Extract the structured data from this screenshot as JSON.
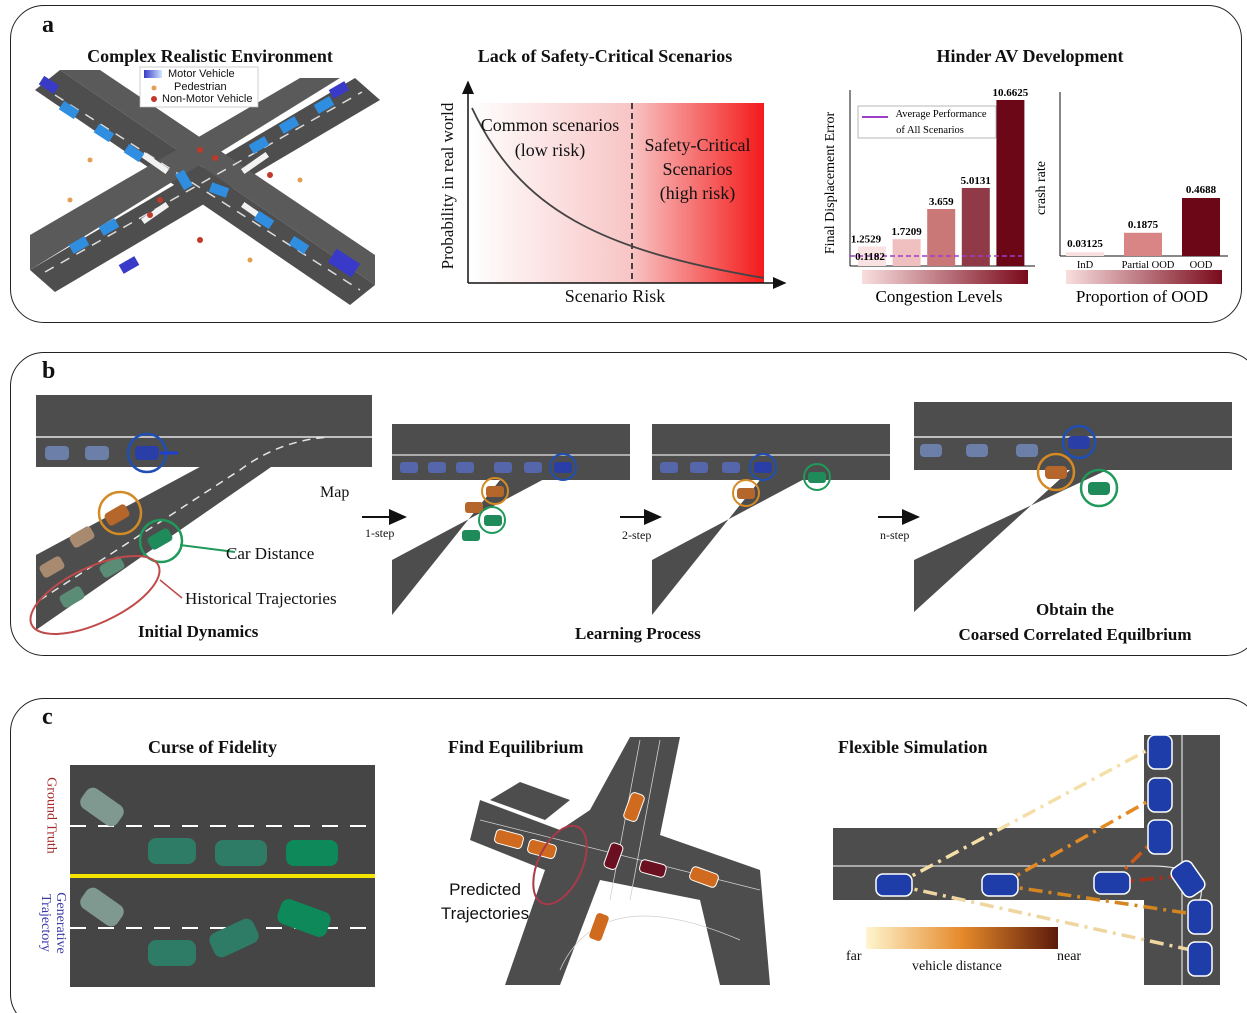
{
  "panel_a": {
    "label": "a",
    "col1": {
      "title": "Complex Realistic Environment",
      "legend": [
        "Motor Vehicle",
        "Pedestrian",
        "Non-Motor Vehicle"
      ]
    },
    "col2": {
      "title": "Lack of Safety-Critical Scenarios",
      "ylabel": "Probability in real world",
      "xlabel": "Scenario Risk",
      "common_line1": "Common scenarios",
      "common_line2": "(low risk)",
      "safety_line1": "Safety-Critical",
      "safety_line2": "Scenarios",
      "safety_line3": "(high risk)"
    },
    "col3": {
      "title": "Hinder AV Development"
    }
  },
  "panel_b": {
    "label": "b",
    "map_label": "Map",
    "car_distance": "Car Distance",
    "historical": "Historical Trajectories",
    "initial": "Initial Dynamics",
    "step1": "1-step",
    "step2": "2-step",
    "stepn": "n-step",
    "learning": "Learning Process",
    "obtain_line1": "Obtain the",
    "obtain_line2": "Coarsed Correlated Equilbrium"
  },
  "panel_c": {
    "label": "c",
    "curse_title": "Curse of Fidelity",
    "ground_truth": "Ground Truth",
    "generative": "Generative Trajectory",
    "find_title": "Find Equilibrium",
    "predicted_line1": "Predicted",
    "predicted_line2": "Trajectories",
    "flex_title": "Flexible Simulation",
    "far": "far",
    "near": "near",
    "vehicle_distance": "vehicle distance"
  },
  "chart_data": [
    {
      "type": "bar",
      "ylabel": "Final Displacement Error",
      "xlabel": "Congestion Levels",
      "legend": "Average Performance of All Scenarios",
      "average_line": 0.1182,
      "categories": [
        "",
        "",
        "",
        "",
        ""
      ],
      "values": [
        1.2529,
        1.7209,
        3.659,
        5.0131,
        10.6625
      ],
      "colors": [
        "#f9e2e2",
        "#f0c0c0",
        "#c97777",
        "#8f3a46",
        "#6b0716"
      ],
      "legend_color": "#9b3fc9"
    },
    {
      "type": "bar",
      "ylabel": "crash rate",
      "xlabel": "Proportion of OOD",
      "categories": [
        "InD",
        "Partial  OOD",
        "OOD"
      ],
      "values": [
        0.03125,
        0.1875,
        0.4688
      ],
      "colors": [
        "#f9e0e0",
        "#d98585",
        "#6b0716"
      ]
    }
  ]
}
